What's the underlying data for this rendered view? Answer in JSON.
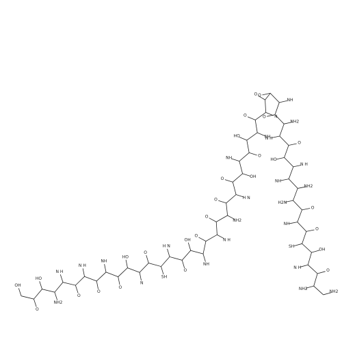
{
  "structure": {
    "labels": [
      "OH",
      "O",
      "HO",
      "NH2",
      "N H",
      "O",
      "N H",
      "O",
      "NH",
      "O",
      "HO",
      "N",
      "O",
      "SH",
      "H N",
      "O",
      "OH",
      "NH",
      "O",
      "N H",
      "O",
      "NH2",
      "O",
      "H N",
      "O",
      "OH",
      "NH",
      "O",
      "HO",
      "NH",
      "O",
      "N",
      "O",
      "O",
      "NH",
      "O",
      "NH2",
      "N H",
      "O",
      "HO",
      "N H",
      "NH",
      "NH2",
      "H2N",
      "O",
      "NH",
      "O",
      "SH",
      "OH",
      "N H",
      "O",
      "NH2",
      "NH2"
    ]
  }
}
